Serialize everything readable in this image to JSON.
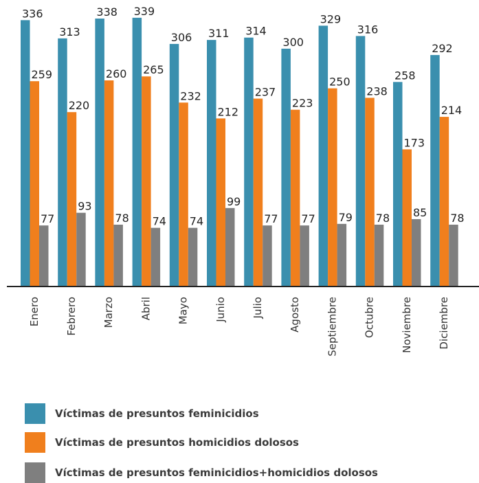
{
  "chart_data": {
    "type": "bar",
    "categories": [
      "Enero",
      "Febrero",
      "Marzo",
      "Abril",
      "Mayo",
      "Junio",
      "Julio",
      "Agosto",
      "Septiembre",
      "Octubre",
      "Noviembre",
      "Diciembre"
    ],
    "series": [
      {
        "name": "Víctimas de presuntos feminicidios",
        "color": "#3a8fae",
        "values": [
          336,
          313,
          338,
          339,
          306,
          311,
          314,
          300,
          329,
          316,
          258,
          292
        ]
      },
      {
        "name": "Víctimas de presuntos homicidios dolosos",
        "color": "#f07f1d",
        "values": [
          259,
          220,
          260,
          265,
          232,
          212,
          237,
          223,
          250,
          238,
          173,
          214
        ]
      },
      {
        "name": "Víctimas de presuntos feminicidios+homicidios dolosos",
        "color": "#7f7f7f",
        "values": [
          77,
          93,
          78,
          74,
          74,
          99,
          77,
          77,
          79,
          78,
          85,
          78
        ]
      }
    ],
    "legend_position": "bottom",
    "grid": false
  }
}
